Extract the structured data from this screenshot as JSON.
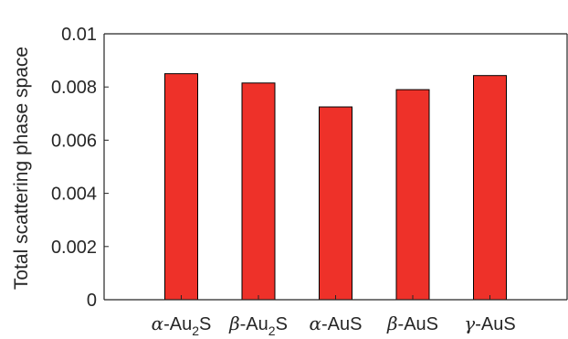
{
  "chart_data": {
    "type": "bar",
    "ylabel": "Total scattering phase space",
    "xlabel": "",
    "ylim": [
      0,
      0.01
    ],
    "yticks": [
      "0",
      "0.002",
      "0.004",
      "0.006",
      "0.008",
      "0.01"
    ],
    "categories": [
      {
        "greek": "α",
        "base": "-Au",
        "sub": "2",
        "tail": "S"
      },
      {
        "greek": "β",
        "base": "-Au",
        "sub": "2",
        "tail": "S"
      },
      {
        "greek": "α",
        "base": "-AuS",
        "sub": "",
        "tail": ""
      },
      {
        "greek": "β",
        "base": "-AuS",
        "sub": "",
        "tail": ""
      },
      {
        "greek": "γ",
        "base": "-AuS",
        "sub": "",
        "tail": ""
      }
    ],
    "values": [
      0.0085,
      0.00815,
      0.00725,
      0.0079,
      0.00843
    ],
    "bar_color": "#ee3129",
    "grid": false
  }
}
